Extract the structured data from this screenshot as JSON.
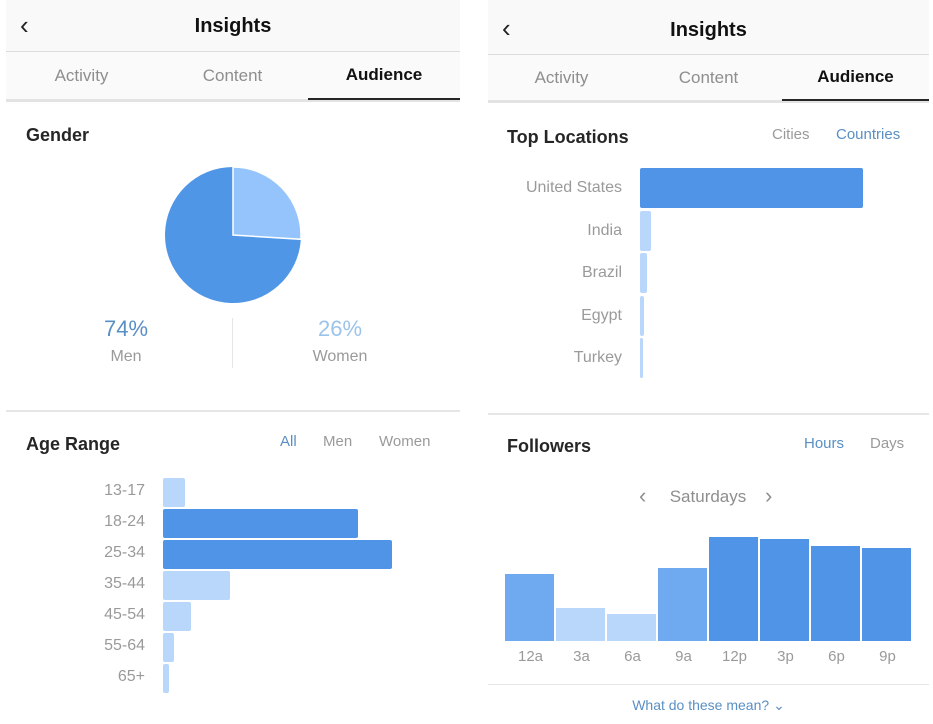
{
  "left": {
    "header": {
      "title": "Insights",
      "back_icon": "chevron-left-icon"
    },
    "tabs": [
      {
        "label": "Activity"
      },
      {
        "label": "Content"
      },
      {
        "label": "Audience",
        "active": true
      }
    ],
    "gender": {
      "title": "Gender",
      "men": {
        "value": "74%",
        "label": "Men"
      },
      "women": {
        "value": "26%",
        "label": "Women"
      }
    },
    "age_range": {
      "title": "Age Range",
      "filters": [
        {
          "label": "All",
          "active": true
        },
        {
          "label": "Men"
        },
        {
          "label": "Women"
        }
      ]
    }
  },
  "right": {
    "header": {
      "title": "Insights",
      "back_icon": "chevron-left-icon"
    },
    "tabs": [
      {
        "label": "Activity"
      },
      {
        "label": "Content"
      },
      {
        "label": "Audience",
        "active": true
      }
    ],
    "top_locations": {
      "title": "Top Locations",
      "filters": [
        {
          "label": "Cities"
        },
        {
          "label": "Countries",
          "active": true
        }
      ]
    },
    "followers": {
      "title": "Followers",
      "filters": [
        {
          "label": "Hours",
          "active": true
        },
        {
          "label": "Days"
        }
      ],
      "day": "Saturdays",
      "prev_icon": "chevron-left-icon",
      "next_icon": "chevron-right-icon"
    },
    "footer_link": "What do these mean?"
  },
  "colors": {
    "dark": "#4f94e6",
    "medium": "#6fa9ef",
    "light": "#b9d6fb",
    "pie_men": "#5096e6",
    "pie_women": "#94c4fb",
    "accent_text": "#5a8fc4"
  },
  "chart_data": [
    {
      "type": "pie",
      "title": "Gender",
      "categories": [
        "Men",
        "Women"
      ],
      "values": [
        74,
        26
      ]
    },
    {
      "type": "bar",
      "orientation": "horizontal",
      "title": "Age Range",
      "categories": [
        "13-17",
        "18-24",
        "25-34",
        "35-44",
        "45-54",
        "55-64",
        "65+"
      ],
      "values": [
        4,
        35,
        41,
        12,
        5,
        2,
        1
      ]
    },
    {
      "type": "bar",
      "orientation": "horizontal",
      "title": "Top Locations",
      "categories": [
        "United States",
        "India",
        "Brazil",
        "Egypt",
        "Turkey"
      ],
      "values": [
        90,
        4.4,
        2.8,
        1.6,
        1.2
      ]
    },
    {
      "type": "bar",
      "orientation": "vertical",
      "title": "Followers",
      "categories": [
        "12a",
        "3a",
        "6a",
        "9a",
        "12p",
        "3p",
        "6p",
        "9p"
      ],
      "values": [
        64,
        32,
        26,
        70,
        100,
        98,
        91,
        89
      ]
    }
  ]
}
